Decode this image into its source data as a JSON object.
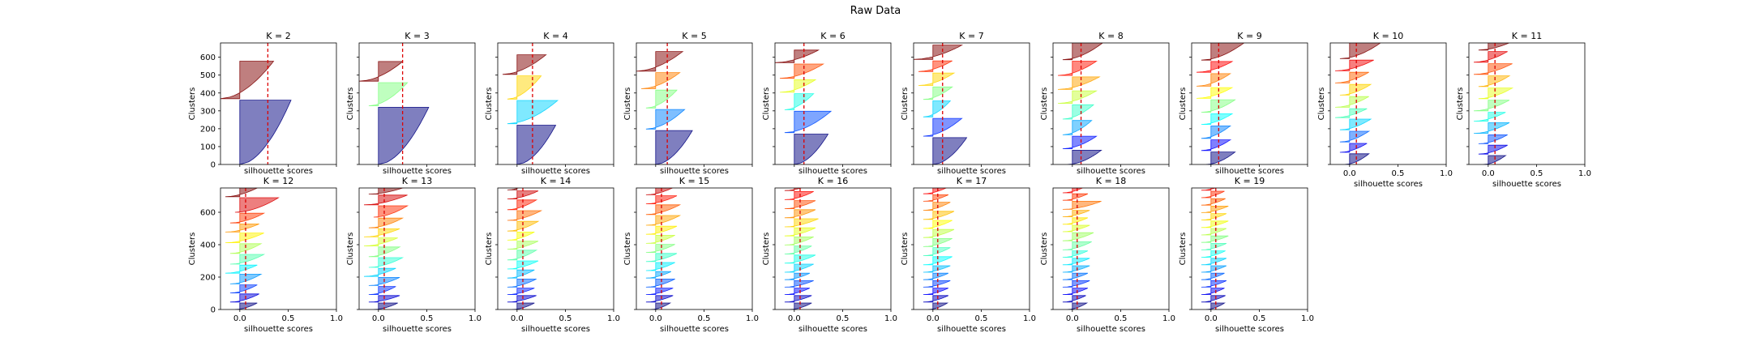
{
  "figure": {
    "title": "Raw Data",
    "xlabel": "silhouette scores",
    "ylabel": "Clusters"
  },
  "chart_data": {
    "type": "area",
    "title": "Raw Data",
    "xlabel": "silhouette scores",
    "ylabel": "Clusters",
    "xlim": [
      -0.2,
      1.0
    ],
    "xticks": [
      "0.0",
      "0.5",
      "1.0"
    ],
    "ylim_row1": [
      0,
      680
    ],
    "ylim_row2": [
      0,
      750
    ],
    "yticks_row1": [
      "0",
      "100",
      "200",
      "300",
      "400",
      "500",
      "600"
    ],
    "yticks_row2": [
      "0",
      "200",
      "400",
      "600"
    ],
    "colormap": "jet",
    "avg_line_color": "#dd0000",
    "panels": [
      {
        "title": "K = 2",
        "k": 2,
        "row": 1,
        "col": 0,
        "avg": 0.29,
        "sizes": [
          360,
          210
        ],
        "maxs": [
          0.53,
          0.35
        ],
        "mins": [
          0.0,
          -0.2
        ]
      },
      {
        "title": "K = 3",
        "k": 3,
        "row": 1,
        "col": 1,
        "avg": 0.25,
        "sizes": [
          320,
          130,
          110
        ],
        "maxs": [
          0.52,
          0.3,
          0.25
        ],
        "mins": [
          0.0,
          -0.1,
          -0.2
        ]
      },
      {
        "title": "K = 4",
        "k": 4,
        "row": 1,
        "col": 2,
        "avg": 0.16,
        "sizes": [
          220,
          130,
          130,
          110
        ],
        "maxs": [
          0.4,
          0.42,
          0.25,
          0.3
        ],
        "mins": [
          0.0,
          -0.1,
          -0.1,
          -0.15
        ]
      },
      {
        "title": "K = 5",
        "k": 5,
        "row": 1,
        "col": 3,
        "avg": 0.12,
        "sizes": [
          190,
          110,
          100,
          90,
          110
        ],
        "maxs": [
          0.38,
          0.3,
          0.22,
          0.25,
          0.28
        ],
        "mins": [
          0.0,
          -0.1,
          -0.1,
          -0.15,
          -0.2
        ]
      },
      {
        "title": "K = 6",
        "k": 6,
        "row": 1,
        "col": 4,
        "avg": 0.1,
        "sizes": [
          170,
          120,
          90,
          70,
          80,
          70
        ],
        "maxs": [
          0.35,
          0.38,
          0.2,
          0.22,
          0.3,
          0.25
        ],
        "mins": [
          0.0,
          -0.1,
          -0.1,
          -0.15,
          -0.15,
          -0.2
        ]
      },
      {
        "title": "K = 7",
        "k": 7,
        "row": 1,
        "col": 5,
        "avg": 0.1,
        "sizes": [
          150,
          100,
          90,
          70,
          70,
          60,
          80
        ],
        "maxs": [
          0.35,
          0.3,
          0.18,
          0.2,
          0.22,
          0.2,
          0.3
        ],
        "mins": [
          0.0,
          -0.1,
          -0.1,
          -0.1,
          -0.15,
          -0.15,
          -0.2
        ]
      },
      {
        "title": "K = 8",
        "k": 8,
        "row": 1,
        "col": 6,
        "avg": 0.09,
        "sizes": [
          80,
          70,
          80,
          80,
          70,
          70,
          80,
          110
        ],
        "maxs": [
          0.3,
          0.25,
          0.2,
          0.22,
          0.25,
          0.28,
          0.25,
          0.35
        ],
        "mins": [
          -0.05,
          -0.1,
          -0.1,
          -0.1,
          -0.15,
          -0.15,
          -0.15,
          -0.1
        ]
      },
      {
        "title": "K = 9",
        "k": 9,
        "row": 1,
        "col": 7,
        "avg": 0.08,
        "sizes": [
          70,
          60,
          70,
          60,
          70,
          60,
          70,
          60,
          120
        ],
        "maxs": [
          0.25,
          0.2,
          0.2,
          0.22,
          0.25,
          0.22,
          0.2,
          0.22,
          0.4
        ],
        "mins": [
          -0.05,
          -0.1,
          -0.1,
          -0.1,
          -0.1,
          -0.15,
          -0.15,
          -0.15,
          -0.1
        ]
      },
      {
        "title": "K = 10",
        "k": 10,
        "row": 1,
        "col": 8,
        "avg": 0.07,
        "sizes": [
          60,
          50,
          60,
          60,
          50,
          60,
          60,
          60,
          60,
          100
        ],
        "maxs": [
          0.2,
          0.18,
          0.2,
          0.22,
          0.18,
          0.2,
          0.22,
          0.2,
          0.25,
          0.35
        ],
        "mins": [
          -0.05,
          -0.1,
          -0.1,
          -0.1,
          -0.15,
          -0.15,
          -0.1,
          -0.15,
          -0.15,
          -0.1
        ]
      },
      {
        "title": "K = 11",
        "k": 11,
        "row": 1,
        "col": 9,
        "avg": 0.07,
        "sizes": [
          50,
          50,
          50,
          60,
          50,
          60,
          60,
          60,
          60,
          60,
          110
        ],
        "maxs": [
          0.18,
          0.2,
          0.2,
          0.22,
          0.18,
          0.22,
          0.25,
          0.22,
          0.25,
          0.2,
          0.45
        ],
        "mins": [
          -0.05,
          -0.1,
          -0.1,
          -0.15,
          -0.15,
          -0.15,
          -0.1,
          -0.1,
          -0.15,
          -0.15,
          -0.1
        ]
      },
      {
        "title": "K = 12",
        "k": 12,
        "row": 2,
        "col": 0,
        "avg": 0.06,
        "sizes": [
          40,
          50,
          50,
          60,
          50,
          60,
          60,
          60,
          50,
          60,
          90,
          60
        ],
        "maxs": [
          0.18,
          0.2,
          0.18,
          0.22,
          0.18,
          0.25,
          0.22,
          0.25,
          0.2,
          0.25,
          0.4,
          0.2
        ],
        "mins": [
          -0.05,
          -0.1,
          -0.1,
          -0.1,
          -0.15,
          -0.1,
          -0.1,
          -0.15,
          -0.15,
          -0.1,
          -0.05,
          -0.15
        ]
      },
      {
        "title": "K = 13",
        "k": 13,
        "row": 2,
        "col": 1,
        "avg": 0.06,
        "sizes": [
          40,
          40,
          50,
          50,
          50,
          60,
          60,
          50,
          50,
          60,
          70,
          60,
          60
        ],
        "maxs": [
          0.2,
          0.22,
          0.18,
          0.22,
          0.18,
          0.25,
          0.22,
          0.2,
          0.22,
          0.25,
          0.3,
          0.3,
          0.35
        ],
        "mins": [
          -0.05,
          -0.1,
          -0.1,
          -0.1,
          -0.15,
          -0.1,
          -0.1,
          -0.15,
          -0.15,
          -0.1,
          -0.05,
          -0.15,
          -0.1
        ]
      },
      {
        "title": "K = 14",
        "k": 14,
        "row": 2,
        "col": 2,
        "avg": 0.06,
        "sizes": [
          40,
          40,
          40,
          50,
          50,
          50,
          60,
          50,
          50,
          60,
          60,
          60,
          50,
          50
        ],
        "maxs": [
          0.18,
          0.2,
          0.18,
          0.2,
          0.18,
          0.22,
          0.2,
          0.22,
          0.18,
          0.22,
          0.25,
          0.2,
          0.22,
          0.15
        ],
        "mins": [
          -0.05,
          -0.1,
          -0.1,
          -0.1,
          -0.1,
          -0.1,
          -0.1,
          -0.1,
          -0.1,
          -0.1,
          -0.1,
          -0.1,
          -0.1,
          -0.1
        ]
      },
      {
        "title": "K = 15",
        "k": 15,
        "row": 2,
        "col": 3,
        "avg": 0.06,
        "sizes": [
          40,
          40,
          40,
          50,
          40,
          50,
          50,
          50,
          50,
          50,
          60,
          60,
          50,
          50,
          40
        ],
        "maxs": [
          0.15,
          0.18,
          0.18,
          0.2,
          0.16,
          0.2,
          0.22,
          0.2,
          0.2,
          0.22,
          0.25,
          0.25,
          0.22,
          0.2,
          0.15
        ],
        "mins": [
          -0.05,
          -0.1,
          -0.1,
          -0.1,
          -0.1,
          -0.1,
          -0.1,
          -0.1,
          -0.1,
          -0.1,
          -0.1,
          -0.1,
          -0.1,
          -0.1,
          -0.1
        ]
      },
      {
        "title": "K = 16",
        "k": 16,
        "row": 2,
        "col": 4,
        "avg": 0.06,
        "sizes": [
          40,
          40,
          40,
          40,
          40,
          50,
          50,
          50,
          50,
          50,
          50,
          50,
          50,
          50,
          40,
          40
        ],
        "maxs": [
          0.18,
          0.18,
          0.16,
          0.2,
          0.16,
          0.2,
          0.22,
          0.18,
          0.2,
          0.22,
          0.25,
          0.22,
          0.22,
          0.2,
          0.18,
          0.15
        ],
        "mins": [
          -0.05,
          -0.1,
          -0.1,
          -0.1,
          -0.1,
          -0.1,
          -0.1,
          -0.1,
          -0.1,
          -0.1,
          -0.1,
          -0.1,
          -0.1,
          -0.1,
          -0.1,
          -0.1
        ]
      },
      {
        "title": "K = 17",
        "k": 17,
        "row": 2,
        "col": 5,
        "avg": 0.05,
        "sizes": [
          40,
          40,
          40,
          40,
          40,
          40,
          50,
          50,
          50,
          50,
          50,
          50,
          50,
          40,
          40,
          40,
          40
        ],
        "maxs": [
          0.15,
          0.16,
          0.16,
          0.18,
          0.16,
          0.18,
          0.2,
          0.18,
          0.2,
          0.22,
          0.2,
          0.22,
          0.18,
          0.16,
          0.15,
          0.14,
          0.12
        ],
        "mins": [
          -0.05,
          -0.1,
          -0.1,
          -0.1,
          -0.1,
          -0.1,
          -0.1,
          -0.1,
          -0.1,
          -0.1,
          -0.1,
          -0.1,
          -0.1,
          -0.1,
          -0.1,
          -0.1,
          -0.1
        ]
      },
      {
        "title": "K = 18",
        "k": 18,
        "row": 2,
        "col": 6,
        "avg": 0.05,
        "sizes": [
          40,
          40,
          40,
          40,
          40,
          40,
          40,
          40,
          50,
          50,
          40,
          40,
          40,
          50,
          40,
          40,
          40,
          40
        ],
        "maxs": [
          0.15,
          0.14,
          0.16,
          0.18,
          0.16,
          0.18,
          0.18,
          0.16,
          0.2,
          0.22,
          0.18,
          0.16,
          0.18,
          0.3,
          0.16,
          0.14,
          0.14,
          0.12
        ],
        "mins": [
          -0.05,
          -0.1,
          -0.1,
          -0.1,
          -0.1,
          -0.1,
          -0.1,
          -0.1,
          -0.1,
          -0.1,
          -0.1,
          -0.1,
          -0.1,
          -0.1,
          -0.1,
          -0.1,
          -0.1,
          -0.1
        ]
      },
      {
        "title": "K = 19",
        "k": 19,
        "row": 2,
        "col": 7,
        "avg": 0.05,
        "sizes": [
          40,
          40,
          40,
          40,
          40,
          40,
          40,
          40,
          40,
          40,
          40,
          40,
          40,
          40,
          40,
          40,
          40,
          40,
          40
        ],
        "maxs": [
          0.14,
          0.15,
          0.14,
          0.16,
          0.14,
          0.16,
          0.16,
          0.15,
          0.16,
          0.18,
          0.16,
          0.18,
          0.16,
          0.18,
          0.15,
          0.14,
          0.16,
          0.14,
          0.12
        ],
        "mins": [
          -0.05,
          -0.1,
          -0.1,
          -0.1,
          -0.1,
          -0.1,
          -0.1,
          -0.1,
          -0.1,
          -0.1,
          -0.1,
          -0.1,
          -0.1,
          -0.1,
          -0.1,
          -0.1,
          -0.1,
          -0.1,
          -0.1
        ]
      }
    ]
  }
}
